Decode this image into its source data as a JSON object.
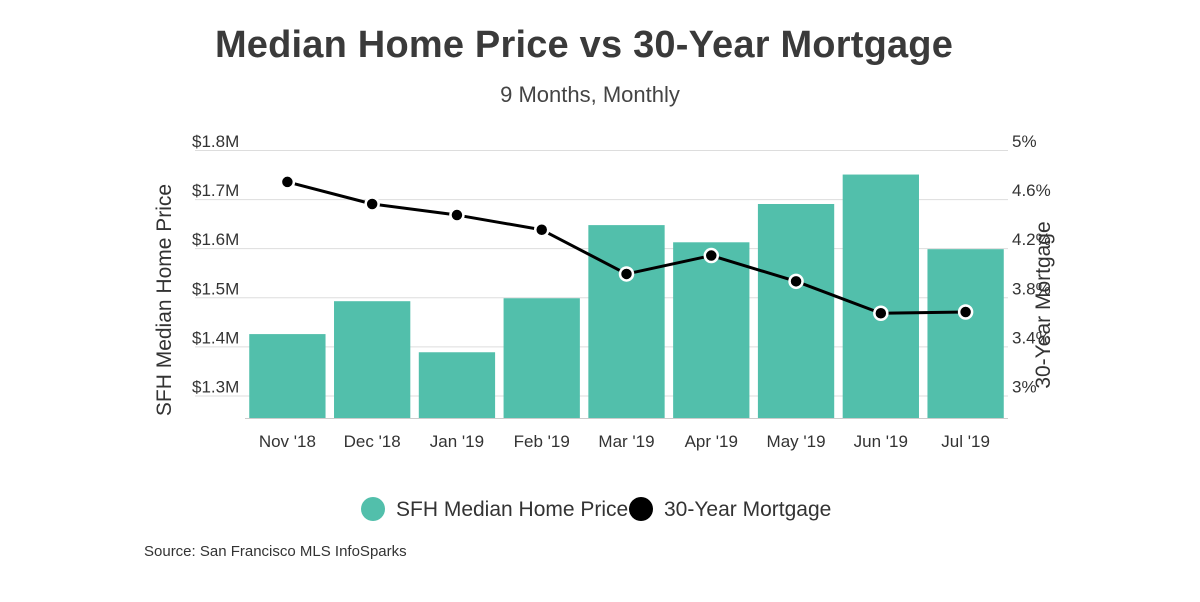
{
  "title": "Median Home Price vs 30-Year Mortgage",
  "subtitle": "9 Months, Monthly",
  "source": "Source:  San Francisco MLS InfoSparks",
  "colors": {
    "bar": "#52bfab",
    "line": "#000000",
    "grid": "#dddddd",
    "text": "#333333"
  },
  "chart_data": {
    "type": "bar",
    "categories": [
      "Nov '18",
      "Dec '18",
      "Jan '19",
      "Feb '19",
      "Mar '19",
      "Apr '19",
      "May '19",
      "Jun '19",
      "Jul '19"
    ],
    "series": [
      {
        "name": "SFH Median Home Price",
        "type": "bar",
        "axis": "left",
        "values": [
          1425000,
          1492000,
          1388000,
          1498000,
          1647000,
          1612000,
          1690000,
          1750000,
          1598000
        ]
      },
      {
        "name": "30-Year Mortgage",
        "type": "line",
        "axis": "right",
        "values": [
          4.74,
          4.56,
          4.47,
          4.35,
          3.99,
          4.14,
          3.93,
          3.67,
          3.68
        ]
      }
    ],
    "ylabel": "SFH Median Home Price",
    "y2label": "30-Year Mortgage",
    "ylim": [
      1250000,
      1800000
    ],
    "y2lim": [
      2.8,
      5.0
    ],
    "yticks": [
      {
        "value": 1300000,
        "label": "$1.3M"
      },
      {
        "value": 1400000,
        "label": "$1.4M"
      },
      {
        "value": 1500000,
        "label": "$1.5M"
      },
      {
        "value": 1600000,
        "label": "$1.6M"
      },
      {
        "value": 1700000,
        "label": "$1.7M"
      },
      {
        "value": 1800000,
        "label": "$1.8M"
      }
    ],
    "y2ticks": [
      {
        "value": 3.0,
        "label": "3%"
      },
      {
        "value": 3.4,
        "label": "3.4%"
      },
      {
        "value": 3.8,
        "label": "3.8%"
      },
      {
        "value": 4.2,
        "label": "4.2%"
      },
      {
        "value": 4.6,
        "label": "4.6%"
      },
      {
        "value": 5.0,
        "label": "5%"
      }
    ],
    "grid": true,
    "legend": "bottom-center"
  }
}
